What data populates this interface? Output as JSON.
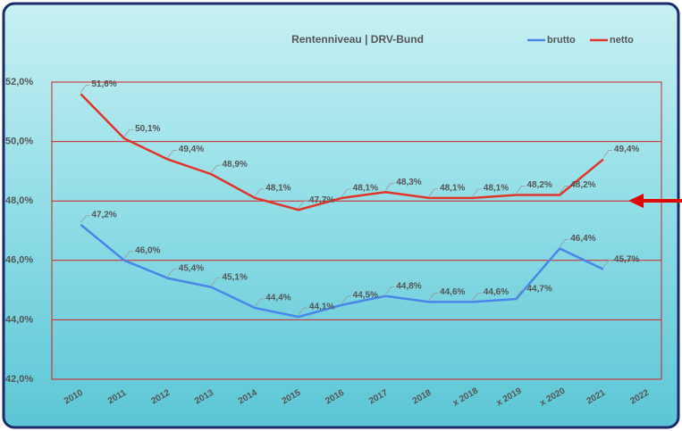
{
  "chart_data": {
    "type": "line",
    "title": "Rentenniveau | DRV-Bund",
    "categories": [
      "2010",
      "2011",
      "2012",
      "2013",
      "2014",
      "2015",
      "2016",
      "2017",
      "2018",
      "x 2018",
      "x 2019",
      "x 2020",
      "2021",
      "2022"
    ],
    "series": [
      {
        "name": "brutto",
        "color": "#4a86e8",
        "values": [
          47.2,
          46.0,
          45.4,
          45.1,
          44.4,
          44.1,
          44.5,
          44.8,
          44.6,
          44.6,
          44.7,
          46.4,
          45.7,
          null
        ],
        "value_labels": [
          "47,2%",
          "46,0%",
          "45,4%",
          "45,1%",
          "44,4%",
          "44,1%",
          "44,5%",
          "44,8%",
          "44,6%",
          "44,6%",
          "44,7%",
          "46,4%",
          "45,7%",
          null
        ]
      },
      {
        "name": "netto",
        "color": "#e0352b",
        "values": [
          51.6,
          50.1,
          49.4,
          48.9,
          48.1,
          47.7,
          48.1,
          48.3,
          48.1,
          48.1,
          48.2,
          48.2,
          49.4,
          null
        ],
        "value_labels": [
          "51,6%",
          "50,1%",
          "49,4%",
          "48,9%",
          "48,1%",
          "47,7%",
          "48,1%",
          "48,3%",
          "48,1%",
          "48,1%",
          "48,2%",
          "48,2%",
          "49,4%",
          null
        ]
      }
    ],
    "ylim": [
      42,
      52
    ],
    "yticks": [
      {
        "value": 42,
        "label": "42,0%"
      },
      {
        "value": 44,
        "label": "44,0%"
      },
      {
        "value": 46,
        "label": "46,0%"
      },
      {
        "value": 48,
        "label": "48,0%"
      },
      {
        "value": 50,
        "label": "50,0%"
      },
      {
        "value": 52,
        "label": "52,0%"
      }
    ],
    "grid": true,
    "legend": "top-right"
  }
}
